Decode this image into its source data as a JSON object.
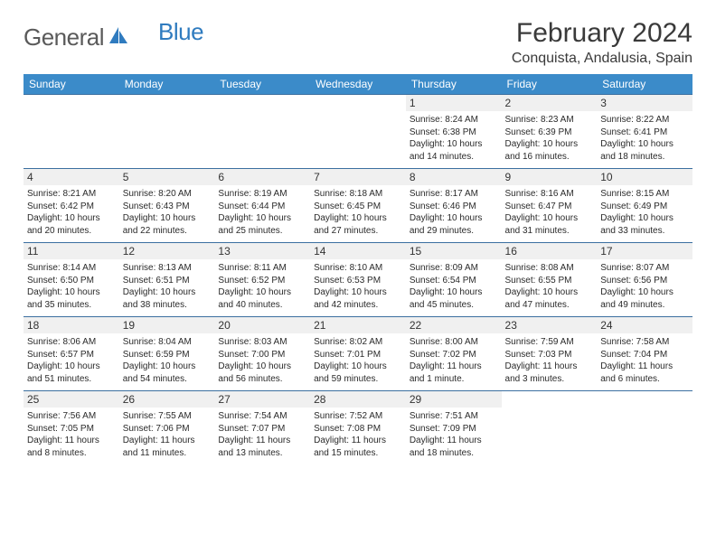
{
  "brand": {
    "text1": "General",
    "text2": "Blue",
    "text_color_main": "#5a5a5a",
    "text_color_accent": "#2f7bbf",
    "icon_color": "#2f7bbf"
  },
  "title": "February 2024",
  "location": "Conquista, Andalusia, Spain",
  "colors": {
    "header_bg": "#3b8bc9",
    "header_text": "#ffffff",
    "daynum_bg": "#f0f0f0",
    "border": "#3b6fa0",
    "body_text": "#2a2a2a",
    "page_bg": "#ffffff"
  },
  "fonts": {
    "title_size": 30,
    "location_size": 16,
    "dayhead_size": 12,
    "daynum_size": 12,
    "info_size": 10
  },
  "day_names": [
    "Sunday",
    "Monday",
    "Tuesday",
    "Wednesday",
    "Thursday",
    "Friday",
    "Saturday"
  ],
  "weeks": [
    [
      null,
      null,
      null,
      null,
      {
        "n": "1",
        "sunrise": "8:24 AM",
        "sunset": "6:38 PM",
        "daylight": "10 hours and 14 minutes."
      },
      {
        "n": "2",
        "sunrise": "8:23 AM",
        "sunset": "6:39 PM",
        "daylight": "10 hours and 16 minutes."
      },
      {
        "n": "3",
        "sunrise": "8:22 AM",
        "sunset": "6:41 PM",
        "daylight": "10 hours and 18 minutes."
      }
    ],
    [
      {
        "n": "4",
        "sunrise": "8:21 AM",
        "sunset": "6:42 PM",
        "daylight": "10 hours and 20 minutes."
      },
      {
        "n": "5",
        "sunrise": "8:20 AM",
        "sunset": "6:43 PM",
        "daylight": "10 hours and 22 minutes."
      },
      {
        "n": "6",
        "sunrise": "8:19 AM",
        "sunset": "6:44 PM",
        "daylight": "10 hours and 25 minutes."
      },
      {
        "n": "7",
        "sunrise": "8:18 AM",
        "sunset": "6:45 PM",
        "daylight": "10 hours and 27 minutes."
      },
      {
        "n": "8",
        "sunrise": "8:17 AM",
        "sunset": "6:46 PM",
        "daylight": "10 hours and 29 minutes."
      },
      {
        "n": "9",
        "sunrise": "8:16 AM",
        "sunset": "6:47 PM",
        "daylight": "10 hours and 31 minutes."
      },
      {
        "n": "10",
        "sunrise": "8:15 AM",
        "sunset": "6:49 PM",
        "daylight": "10 hours and 33 minutes."
      }
    ],
    [
      {
        "n": "11",
        "sunrise": "8:14 AM",
        "sunset": "6:50 PM",
        "daylight": "10 hours and 35 minutes."
      },
      {
        "n": "12",
        "sunrise": "8:13 AM",
        "sunset": "6:51 PM",
        "daylight": "10 hours and 38 minutes."
      },
      {
        "n": "13",
        "sunrise": "8:11 AM",
        "sunset": "6:52 PM",
        "daylight": "10 hours and 40 minutes."
      },
      {
        "n": "14",
        "sunrise": "8:10 AM",
        "sunset": "6:53 PM",
        "daylight": "10 hours and 42 minutes."
      },
      {
        "n": "15",
        "sunrise": "8:09 AM",
        "sunset": "6:54 PM",
        "daylight": "10 hours and 45 minutes."
      },
      {
        "n": "16",
        "sunrise": "8:08 AM",
        "sunset": "6:55 PM",
        "daylight": "10 hours and 47 minutes."
      },
      {
        "n": "17",
        "sunrise": "8:07 AM",
        "sunset": "6:56 PM",
        "daylight": "10 hours and 49 minutes."
      }
    ],
    [
      {
        "n": "18",
        "sunrise": "8:06 AM",
        "sunset": "6:57 PM",
        "daylight": "10 hours and 51 minutes."
      },
      {
        "n": "19",
        "sunrise": "8:04 AM",
        "sunset": "6:59 PM",
        "daylight": "10 hours and 54 minutes."
      },
      {
        "n": "20",
        "sunrise": "8:03 AM",
        "sunset": "7:00 PM",
        "daylight": "10 hours and 56 minutes."
      },
      {
        "n": "21",
        "sunrise": "8:02 AM",
        "sunset": "7:01 PM",
        "daylight": "10 hours and 59 minutes."
      },
      {
        "n": "22",
        "sunrise": "8:00 AM",
        "sunset": "7:02 PM",
        "daylight": "11 hours and 1 minute."
      },
      {
        "n": "23",
        "sunrise": "7:59 AM",
        "sunset": "7:03 PM",
        "daylight": "11 hours and 3 minutes."
      },
      {
        "n": "24",
        "sunrise": "7:58 AM",
        "sunset": "7:04 PM",
        "daylight": "11 hours and 6 minutes."
      }
    ],
    [
      {
        "n": "25",
        "sunrise": "7:56 AM",
        "sunset": "7:05 PM",
        "daylight": "11 hours and 8 minutes."
      },
      {
        "n": "26",
        "sunrise": "7:55 AM",
        "sunset": "7:06 PM",
        "daylight": "11 hours and 11 minutes."
      },
      {
        "n": "27",
        "sunrise": "7:54 AM",
        "sunset": "7:07 PM",
        "daylight": "11 hours and 13 minutes."
      },
      {
        "n": "28",
        "sunrise": "7:52 AM",
        "sunset": "7:08 PM",
        "daylight": "11 hours and 15 minutes."
      },
      {
        "n": "29",
        "sunrise": "7:51 AM",
        "sunset": "7:09 PM",
        "daylight": "11 hours and 18 minutes."
      },
      null,
      null
    ]
  ],
  "labels": {
    "sunrise": "Sunrise:",
    "sunset": "Sunset:",
    "daylight": "Daylight:"
  }
}
